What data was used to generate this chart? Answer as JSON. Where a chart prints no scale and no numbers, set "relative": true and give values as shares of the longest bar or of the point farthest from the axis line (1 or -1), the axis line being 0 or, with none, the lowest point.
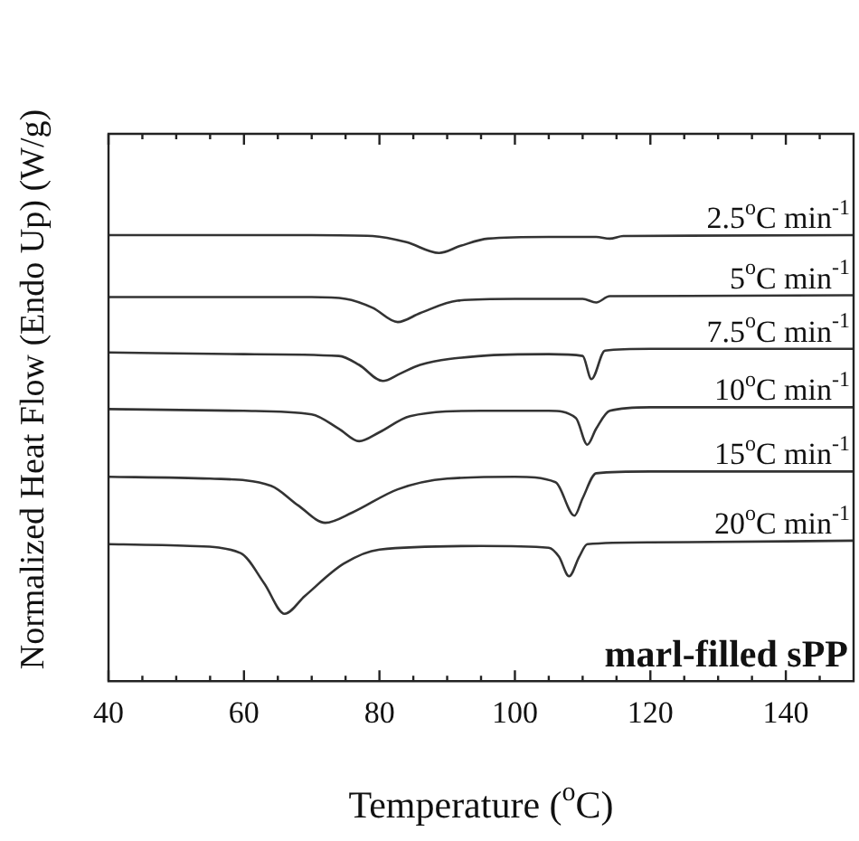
{
  "chart_data": {
    "type": "line",
    "relative": true,
    "xlabel": "Temperature ($^{o}$C)",
    "ylabel": "Normalized Heat Flow (Endo Up) (W/g)",
    "annotations": [
      "marl-filled sPP"
    ],
    "xlim": [
      40,
      150
    ],
    "xticks": [
      40,
      {
        "value": 45,
        "label": null
      },
      {
        "value": 50,
        "label": null
      },
      {
        "value": 55,
        "label": null
      },
      60,
      {
        "value": 65,
        "label": null
      },
      {
        "value": 70,
        "label": null
      },
      {
        "value": 75,
        "label": null
      },
      80,
      {
        "value": 85,
        "label": null
      },
      {
        "value": 90,
        "label": null
      },
      {
        "value": 95,
        "label": null
      },
      100,
      {
        "value": 105,
        "label": null
      },
      {
        "value": 110,
        "label": null
      },
      {
        "value": 115,
        "label": null
      },
      120,
      {
        "value": 125,
        "label": null
      },
      {
        "value": 130,
        "label": null
      },
      {
        "value": 135,
        "label": null
      },
      140,
      {
        "value": 145,
        "label": null
      }
    ],
    "grid": false,
    "legend": false,
    "marker": "none",
    "line_style": "solid",
    "series": [
      {
        "name": "2.5$^{o}$C min$^{-1}$",
        "color": "#333333",
        "x": [
          40,
          70,
          79,
          84,
          88.8,
          92,
          96,
          105,
          112,
          114,
          116,
          150
        ],
        "values": [
          1.0,
          1.0,
          0.998,
          0.984,
          0.96,
          0.976,
          0.992,
          0.996,
          0.996,
          0.992,
          0.998,
          1.0
        ]
      },
      {
        "name": "5$^{o}$C min$^{-1}$",
        "color": "#333333",
        "x": [
          40,
          70,
          75,
          79,
          82.7,
          86,
          91.5,
          100,
          110,
          112,
          114,
          150
        ],
        "values": [
          0.861,
          0.861,
          0.857,
          0.837,
          0.805,
          0.825,
          0.853,
          0.857,
          0.857,
          0.849,
          0.863,
          0.865
        ]
      },
      {
        "name": "7.5$^{o}$C min$^{-1}$",
        "color": "#333333",
        "x": [
          40,
          60,
          74,
          77,
          80.5,
          83,
          86,
          95,
          105,
          110,
          111.3,
          113.3,
          120,
          150
        ],
        "values": [
          0.737,
          0.733,
          0.729,
          0.709,
          0.673,
          0.689,
          0.709,
          0.729,
          0.733,
          0.729,
          0.677,
          0.741,
          0.745,
          0.745
        ]
      },
      {
        "name": "10$^{o}$C min$^{-1}$",
        "color": "#333333",
        "x": [
          40,
          60,
          70,
          74,
          77,
          80,
          84.5,
          95,
          105,
          109,
          110.7,
          112,
          114,
          120,
          150
        ],
        "values": [
          0.61,
          0.606,
          0.598,
          0.566,
          0.538,
          0.558,
          0.594,
          0.606,
          0.606,
          0.59,
          0.53,
          0.566,
          0.606,
          0.614,
          0.614
        ]
      },
      {
        "name": "15$^{o}$C min$^{-1}$",
        "color": "#333333",
        "x": [
          40,
          55,
          64,
          68,
          72,
          76,
          82.7,
          90,
          100,
          106,
          108.8,
          110,
          112,
          120,
          150
        ],
        "values": [
          0.458,
          0.454,
          0.438,
          0.394,
          0.355,
          0.378,
          0.43,
          0.454,
          0.458,
          0.446,
          0.371,
          0.41,
          0.466,
          0.47,
          0.47
        ]
      },
      {
        "name": "20$^{o}$C min$^{-1}$",
        "color": "#333333",
        "x": [
          40,
          52,
          59.5,
          63,
          66,
          69,
          74.7,
          80,
          95,
          105,
          106.5,
          108,
          109.5,
          110.7,
          120,
          150
        ],
        "values": [
          0.307,
          0.303,
          0.287,
          0.219,
          0.151,
          0.191,
          0.263,
          0.295,
          0.303,
          0.299,
          0.279,
          0.235,
          0.279,
          0.307,
          0.311,
          0.315
        ]
      }
    ]
  }
}
